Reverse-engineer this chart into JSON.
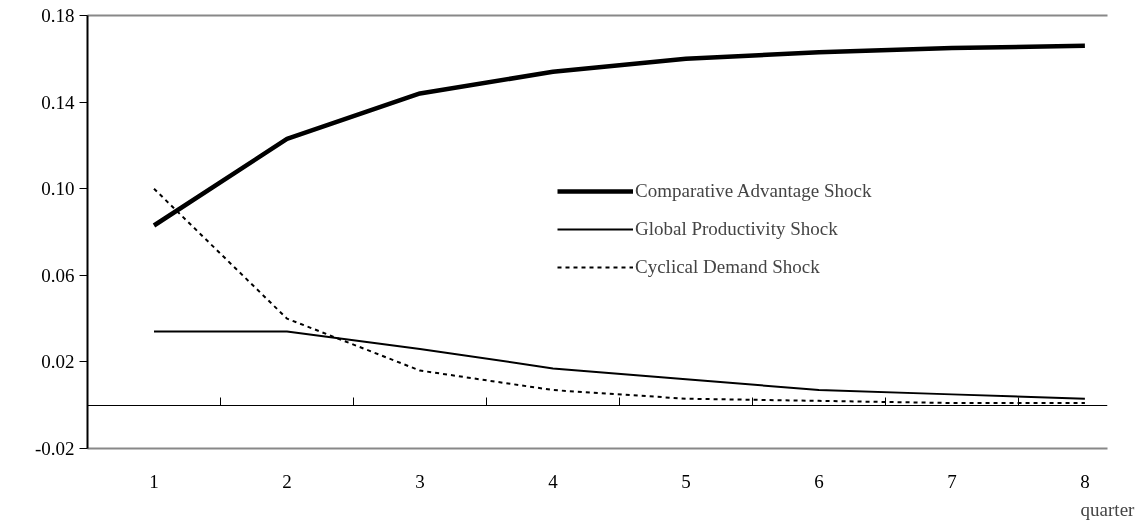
{
  "chart_data": {
    "type": "line",
    "xlabel": "quarter",
    "categories": [
      "1",
      "2",
      "3",
      "4",
      "5",
      "6",
      "7",
      "8"
    ],
    "series": [
      {
        "name": "Comparative Advantage Shock",
        "color": "#000000",
        "line_style": "solid",
        "values": [
          0.083,
          0.123,
          0.144,
          0.154,
          0.16,
          0.163,
          0.165,
          0.166
        ]
      },
      {
        "name": "Global Productivity Shock",
        "color": "#000000",
        "line_style": "solid",
        "values": [
          0.034,
          0.034,
          0.026,
          0.017,
          0.012,
          0.007,
          0.005,
          0.003
        ]
      },
      {
        "name": "Cyclical Demand Shock",
        "color": "#000000",
        "line_style": "dashed",
        "values": [
          0.1,
          0.04,
          0.016,
          0.007,
          0.003,
          0.002,
          0.001,
          0.001
        ]
      }
    ],
    "ylim": [
      -0.02,
      0.18
    ],
    "yticks": [
      {
        "value": -0.02,
        "label": "-0.02"
      },
      {
        "value": 0.02,
        "label": "0.02"
      },
      {
        "value": 0.06,
        "label": "0.06"
      },
      {
        "value": 0.1,
        "label": "0.10"
      },
      {
        "value": 0.14,
        "label": "0.14"
      },
      {
        "value": 0.18,
        "label": "0.18"
      }
    ],
    "grid": false,
    "legend": "center",
    "marker": "none"
  }
}
